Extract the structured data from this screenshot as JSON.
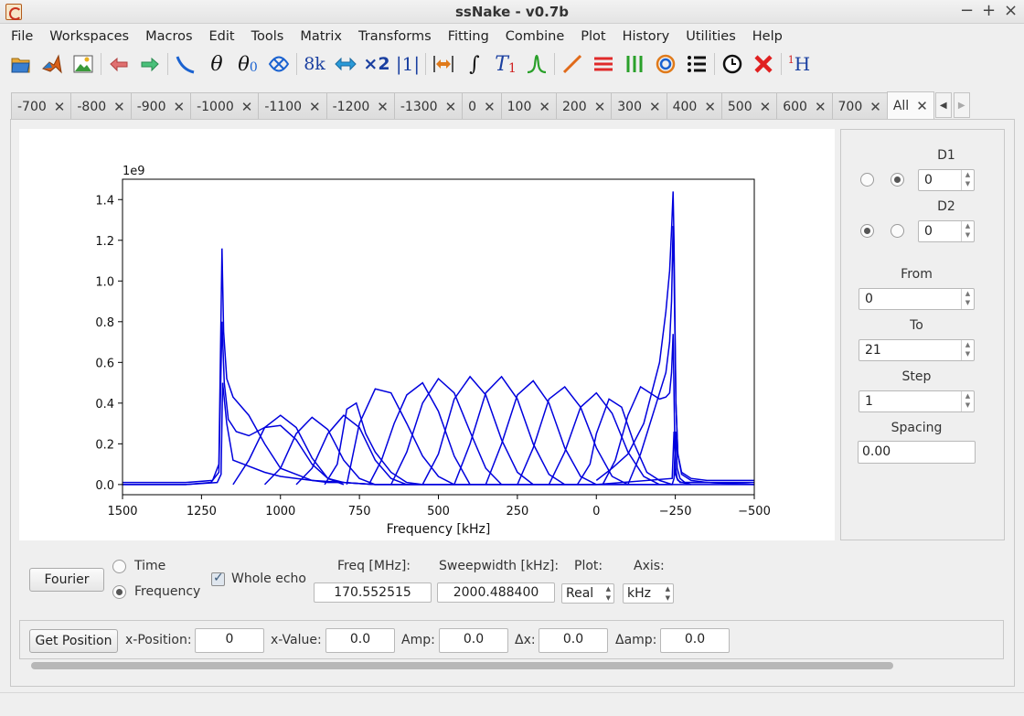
{
  "window": {
    "title": "ssNake - v0.7b",
    "controls": [
      "−",
      "+",
      "×"
    ]
  },
  "menu": [
    "File",
    "Workspaces",
    "Macros",
    "Edit",
    "Tools",
    "Matrix",
    "Transforms",
    "Fitting",
    "Combine",
    "Plot",
    "History",
    "Utilities",
    "Help"
  ],
  "toolbar": {
    "icons": [
      "open-folder-icon",
      "matlab-icon",
      "image-export-icon",
      "undo-icon",
      "redo-icon",
      "baseline-icon",
      "phase-icon",
      "zero-order-phase-icon",
      "swap-echo-icon",
      "size-icon",
      "shift-icon",
      "multiply-icon",
      "reference-icon",
      "region-icon",
      "integrate-icon",
      "relaxation-icon",
      "peak-icon",
      "diagonal-line-icon",
      "stack-icon",
      "array-icon",
      "contour-icon",
      "list-icon",
      "clock-icon",
      "delete-icon",
      "proton-icon"
    ],
    "text_glyphs": {
      "phase": "θ",
      "phase0": "θ",
      "phase0_sub": "0",
      "size": "8k",
      "multiply": "×2",
      "reference": "|1|",
      "integrate": "∫",
      "t1": "T",
      "t1_sub": "1",
      "h1_sup": "1",
      "h1": "H"
    }
  },
  "tabs": [
    {
      "label": "-700"
    },
    {
      "label": "-800"
    },
    {
      "label": "-900"
    },
    {
      "label": "-1000"
    },
    {
      "label": "-1100"
    },
    {
      "label": "-1200"
    },
    {
      "label": "-1300"
    },
    {
      "label": "0"
    },
    {
      "label": "100"
    },
    {
      "label": "200"
    },
    {
      "label": "300"
    },
    {
      "label": "400"
    },
    {
      "label": "500"
    },
    {
      "label": "600"
    },
    {
      "label": "700"
    },
    {
      "label": "All",
      "active": true
    }
  ],
  "tab_close": "✕",
  "sidepanel": {
    "d1_label": "D1",
    "d1_value": "0",
    "d2_label": "D2",
    "d2_value": "0",
    "from_label": "From",
    "from_value": "0",
    "to_label": "To",
    "to_value": "21",
    "step_label": "Step",
    "step_value": "1",
    "spacing_label": "Spacing",
    "spacing_value": "0.00"
  },
  "controls": {
    "fourier_button": "Fourier",
    "time_label": "Time",
    "frequency_label": "Frequency",
    "whole_echo_label": "Whole echo",
    "freq_label": "Freq [MHz]:",
    "freq_value": "170.552515",
    "sweepwidth_label": "Sweepwidth [kHz]:",
    "sweepwidth_value": "2000.488400",
    "plot_label": "Plot:",
    "plot_value": "Real",
    "axis_label": "Axis:",
    "axis_value": "kHz"
  },
  "position": {
    "get_position_button": "Get Position",
    "x_position_label": "x-Position:",
    "x_position_value": "0",
    "x_value_label": "x-Value:",
    "x_value_value": "0.0",
    "amp_label": "Amp:",
    "amp_value": "0.0",
    "dx_label": "Δx:",
    "dx_value": "0.0",
    "damp_label": "Δamp:",
    "damp_value": "0.0"
  },
  "chart_data": {
    "type": "line",
    "title": "",
    "xlabel": "Frequency [kHz]",
    "ylabel": "",
    "scale_label": "1e9",
    "xlim": [
      1500,
      -500
    ],
    "ylim": [
      -0.05,
      1.5
    ],
    "x_ticks": [
      1500,
      1250,
      1000,
      750,
      500,
      250,
      0,
      -250,
      -500
    ],
    "x_tick_labels": [
      "1500",
      "1250",
      "1000",
      "750",
      "500",
      "250",
      "0",
      "−250",
      "−500"
    ],
    "y_ticks": [
      0.0,
      0.2,
      0.4,
      0.6,
      0.8,
      1.0,
      1.2,
      1.4
    ],
    "y_tick_labels": [
      "0.0",
      "0.2",
      "0.4",
      "0.6",
      "0.8",
      "1.0",
      "1.2",
      "1.4"
    ],
    "grid": false,
    "line_color": "#0000dd",
    "series": [
      {
        "x": [
          1500,
          1300,
          1215,
          1195,
          1185,
          1180,
          1170,
          1150,
          1100,
          1050,
          1000,
          900,
          800,
          700,
          600,
          400,
          200,
          0,
          -240,
          -246,
          -251,
          -256,
          -265,
          -280,
          -350,
          -500
        ],
        "y": [
          0.01,
          0.01,
          0.02,
          0.1,
          1.16,
          0.75,
          0.52,
          0.43,
          0.34,
          0.2,
          0.08,
          0.02,
          0.01,
          0.0,
          0.0,
          0.0,
          0.0,
          0.0,
          0.0,
          0.03,
          0.26,
          0.08,
          0.03,
          0.01,
          0.01,
          0.01
        ]
      },
      {
        "x": [
          1500,
          1300,
          1220,
          1195,
          1185,
          1178,
          1165,
          1140,
          1100,
          1050,
          1000,
          950,
          900,
          850,
          800,
          700,
          500,
          200,
          0,
          -240,
          -246,
          -251,
          -256,
          -265,
          -280,
          -350,
          -500
        ],
        "y": [
          0.0,
          0.0,
          0.01,
          0.06,
          0.8,
          0.5,
          0.32,
          0.26,
          0.24,
          0.28,
          0.29,
          0.22,
          0.1,
          0.03,
          0.01,
          0.0,
          0.0,
          0.0,
          0.0,
          0.03,
          0.26,
          0.08,
          0.03,
          0.01,
          0.01,
          0.01,
          0.0
        ]
      },
      {
        "x": [
          1500,
          1300,
          1200,
          1188,
          1183,
          1170,
          1150,
          1050,
          1000,
          950,
          900,
          850,
          800,
          700,
          500,
          200,
          0,
          -250,
          -500
        ],
        "y": [
          0.0,
          0.0,
          0.01,
          0.05,
          0.5,
          0.3,
          0.12,
          0.06,
          0.04,
          0.03,
          0.02,
          0.01,
          0.01,
          0.0,
          0.0,
          0.0,
          0.0,
          0.0,
          0.0
        ]
      },
      {
        "x": [
          1150,
          1100,
          1050,
          1000,
          950,
          900,
          850,
          800
        ],
        "y": [
          0.0,
          0.12,
          0.28,
          0.34,
          0.28,
          0.13,
          0.03,
          0.0
        ]
      },
      {
        "x": [
          1050,
          1000,
          950,
          900,
          850,
          800,
          750,
          700
        ],
        "y": [
          0.0,
          0.08,
          0.25,
          0.33,
          0.27,
          0.12,
          0.03,
          0.0
        ]
      },
      {
        "x": [
          950,
          900,
          850,
          800,
          750,
          700,
          650,
          600
        ],
        "y": [
          0.0,
          0.08,
          0.25,
          0.34,
          0.28,
          0.12,
          0.03,
          0.0
        ]
      },
      {
        "x": [
          860,
          820,
          790,
          760,
          730,
          700,
          650,
          600,
          550
        ],
        "y": [
          0.0,
          0.1,
          0.37,
          0.4,
          0.25,
          0.16,
          0.06,
          0.01,
          0.0
        ]
      },
      {
        "x": [
          790,
          750,
          700,
          650,
          600,
          550,
          500,
          450
        ],
        "y": [
          0.0,
          0.3,
          0.47,
          0.45,
          0.3,
          0.14,
          0.04,
          0.0
        ]
      },
      {
        "x": [
          720,
          680,
          640,
          600,
          550,
          500,
          450,
          400
        ],
        "y": [
          0.0,
          0.12,
          0.3,
          0.44,
          0.5,
          0.36,
          0.14,
          0.0
        ]
      },
      {
        "x": [
          650,
          600,
          550,
          500,
          450,
          400,
          350,
          300
        ],
        "y": [
          0.0,
          0.16,
          0.4,
          0.52,
          0.45,
          0.26,
          0.08,
          0.0
        ]
      },
      {
        "x": [
          550,
          500,
          450,
          400,
          350,
          300,
          250,
          200
        ],
        "y": [
          0.0,
          0.15,
          0.42,
          0.53,
          0.44,
          0.22,
          0.06,
          0.0
        ]
      },
      {
        "x": [
          450,
          400,
          350,
          300,
          250,
          200,
          150,
          100
        ],
        "y": [
          0.0,
          0.2,
          0.45,
          0.53,
          0.42,
          0.2,
          0.05,
          0.0
        ]
      },
      {
        "x": [
          350,
          300,
          250,
          200,
          150,
          100,
          50,
          0
        ],
        "y": [
          0.0,
          0.2,
          0.44,
          0.51,
          0.4,
          0.18,
          0.04,
          0.0
        ]
      },
      {
        "x": [
          250,
          200,
          150,
          100,
          50,
          0,
          -50,
          -100
        ],
        "y": [
          0.0,
          0.18,
          0.42,
          0.48,
          0.38,
          0.18,
          0.04,
          0.0
        ]
      },
      {
        "x": [
          150,
          100,
          50,
          0,
          -50,
          -100,
          -150,
          -200
        ],
        "y": [
          0.0,
          0.16,
          0.38,
          0.45,
          0.35,
          0.16,
          0.04,
          0.0
        ]
      },
      {
        "x": [
          60,
          20,
          0,
          -40,
          -80,
          -120,
          -160,
          -200,
          -240
        ],
        "y": [
          0.0,
          0.1,
          0.25,
          0.42,
          0.38,
          0.2,
          0.06,
          0.02,
          0.0
        ]
      },
      {
        "x": [
          -20,
          -60,
          -100,
          -140,
          -180,
          -200,
          -220,
          -232,
          -238,
          -243,
          -250,
          -258,
          -270,
          -300
        ],
        "y": [
          0.0,
          0.12,
          0.34,
          0.48,
          0.44,
          0.42,
          0.43,
          0.45,
          0.55,
          0.74,
          0.05,
          0.02,
          0.01,
          0.0
        ]
      },
      {
        "x": [
          -100,
          -140,
          -170,
          -200,
          -220,
          -232,
          -238,
          -243,
          -246,
          -252,
          -258,
          -270,
          -300,
          -350,
          -500
        ],
        "y": [
          0.0,
          0.15,
          0.3,
          0.45,
          0.55,
          0.7,
          0.9,
          1.27,
          1.05,
          0.4,
          0.15,
          0.05,
          0.02,
          0.01,
          0.0
        ]
      },
      {
        "x": [
          0,
          -50,
          -100,
          -150,
          -200,
          -220,
          -232,
          -238,
          -243,
          -246,
          -252,
          -258,
          -270,
          -300,
          -350,
          -500
        ],
        "y": [
          0.02,
          0.08,
          0.15,
          0.3,
          0.6,
          0.85,
          1.05,
          1.25,
          1.44,
          1.2,
          0.4,
          0.15,
          0.06,
          0.03,
          0.02,
          0.02
        ]
      }
    ]
  }
}
